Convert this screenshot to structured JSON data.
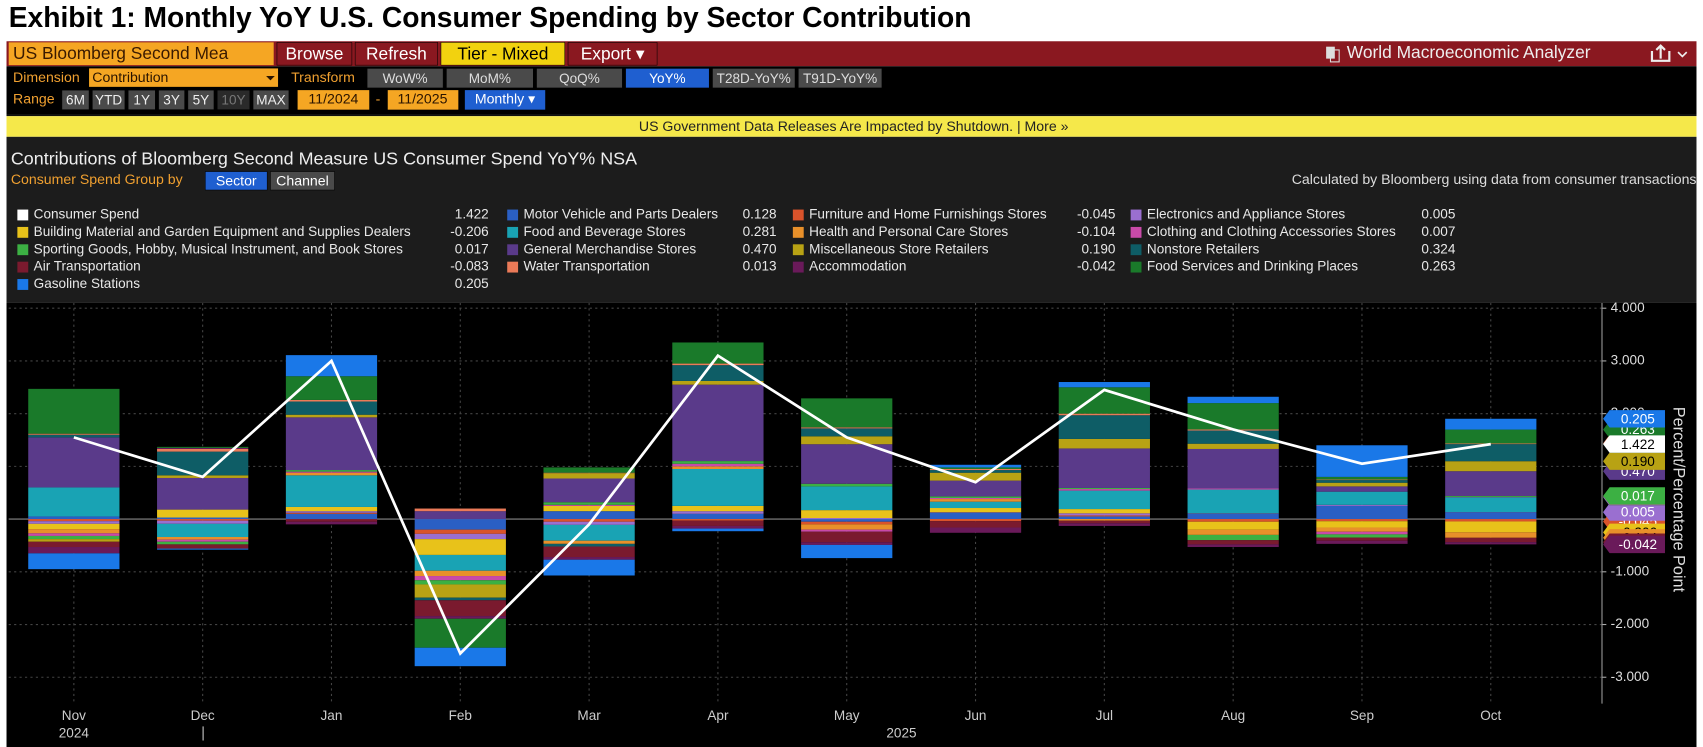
{
  "header": {
    "title": "Exhibit 1: Monthly YoY U.S. Consumer Spending by Sector Contribution"
  },
  "toolbar": {
    "security": "US Bloomberg Second Mea",
    "buttons": [
      "Browse",
      "Refresh",
      "Tier - Mixed",
      "Export ▾"
    ],
    "app_name": "World Macroeconomic Analyzer"
  },
  "controls": {
    "dimension_label": "Dimension",
    "dimension_value": "Contribution",
    "transform_label": "Transform",
    "transforms": [
      {
        "label": "WoW%"
      },
      {
        "label": "MoM%"
      },
      {
        "label": "QoQ%"
      },
      {
        "label": "YoY%",
        "selected": true
      },
      {
        "label": "T28D-YoY%"
      },
      {
        "label": "T91D-YoY%"
      }
    ],
    "range_label": "Range",
    "ranges": [
      {
        "label": "6M"
      },
      {
        "label": "YTD"
      },
      {
        "label": "1Y"
      },
      {
        "label": "3Y"
      },
      {
        "label": "5Y"
      },
      {
        "label": "10Y",
        "disabled": true
      },
      {
        "label": "MAX"
      }
    ],
    "start": "11/2024",
    "separator": "-",
    "end": "11/2025",
    "frequency": "Monthly ▾"
  },
  "banner": "US Government Data Releases Are Impacted by Shutdown. | More »",
  "chart_data": {
    "type": "bar",
    "stacked": true,
    "title": "Contributions of Bloomberg Second Measure US Consumer Spend YoY% NSA",
    "group_by_label": "Consumer Spend  Group by",
    "group_options": [
      {
        "label": "Sector",
        "selected": true
      },
      {
        "label": "Channel"
      }
    ],
    "note": "Calculated by Bloomberg using data from consumer transactions",
    "categories": [
      "Nov",
      "Dec",
      "Jan",
      "Feb",
      "Mar",
      "Apr",
      "May",
      "Jun",
      "Jul",
      "Aug",
      "Sep",
      "Oct"
    ],
    "year_labels": [
      "2024",
      "2025"
    ],
    "y_axis_label": "Percent/Percentage Point",
    "ylim": [
      -3.5,
      4.1
    ],
    "yticks": [
      {
        "value": 4,
        "label": "4.000"
      },
      {
        "value": 3,
        "label": "3.000"
      },
      {
        "value": 2,
        "label": "2.000"
      },
      {
        "value": 1,
        "label": "1.000"
      },
      {
        "value": 0,
        "label": "0.000"
      },
      {
        "value": -1,
        "label": "-1.000"
      },
      {
        "value": -2,
        "label": "-2.000"
      },
      {
        "value": -3,
        "label": "-3.000"
      }
    ],
    "grid": true,
    "series": [
      {
        "name": "Consumer Spend",
        "type": "line",
        "color": "#ffffff",
        "values": [
          1.55,
          0.8,
          3.0,
          -2.55,
          -0.1,
          3.1,
          1.55,
          0.7,
          2.45,
          1.7,
          1.05,
          1.422
        ],
        "value_labels": [
          null,
          null,
          null,
          null,
          null,
          null,
          null,
          null,
          null,
          null,
          null,
          "1.422"
        ]
      },
      {
        "name": "Motor Vehicle and Parts Dealers",
        "color": "#2a5fc4",
        "values": [
          0.05,
          0.03,
          0.1,
          -0.2,
          0.15,
          0.1,
          -0.05,
          0.12,
          0.05,
          0.1,
          0.25,
          0.128
        ],
        "value_labels": [
          null,
          null,
          null,
          null,
          null,
          null,
          null,
          null,
          null,
          null,
          null,
          "0.128"
        ]
      },
      {
        "name": "Furniture and Home Furnishings Stores",
        "color": "#d9532b",
        "values": [
          -0.04,
          -0.03,
          0.02,
          -0.08,
          -0.05,
          -0.03,
          -0.05,
          -0.04,
          0.02,
          -0.05,
          -0.04,
          -0.045
        ],
        "value_labels": [
          null,
          null,
          null,
          null,
          null,
          null,
          null,
          null,
          null,
          null,
          null,
          "-0.045"
        ]
      },
      {
        "name": "Electronics and Appliance Stores",
        "color": "#9a6fd0",
        "values": [
          -0.05,
          -0.06,
          0.03,
          -0.1,
          -0.06,
          0.05,
          0.02,
          0.01,
          0.04,
          0.01,
          0.02,
          0.005
        ],
        "value_labels": [
          null,
          null,
          null,
          null,
          null,
          null,
          null,
          null,
          null,
          null,
          null,
          "0.005"
        ]
      },
      {
        "name": "Building Material and Garden Equipment and Supplies Dealers",
        "color": "#e8c21a",
        "values": [
          -0.1,
          0.15,
          0.08,
          -0.3,
          0.1,
          0.1,
          0.15,
          0.08,
          0.08,
          -0.15,
          -0.12,
          -0.206
        ],
        "value_labels": [
          null,
          null,
          null,
          null,
          null,
          null,
          null,
          null,
          null,
          null,
          null,
          "-0.206"
        ]
      },
      {
        "name": "Food and Beverage Stores",
        "color": "#19a3b4",
        "values": [
          0.55,
          -0.25,
          0.6,
          -0.3,
          -0.3,
          0.7,
          0.45,
          0.12,
          0.35,
          0.45,
          0.25,
          0.281
        ],
        "value_labels": [
          null,
          null,
          null,
          null,
          null,
          null,
          null,
          null,
          null,
          null,
          null,
          "0.281"
        ]
      },
      {
        "name": "Health and Personal Care Stores",
        "color": "#e8902a",
        "values": [
          -0.08,
          -0.05,
          0.05,
          -0.1,
          -0.06,
          0.05,
          -0.1,
          0.05,
          -0.03,
          -0.1,
          -0.08,
          -0.104
        ],
        "value_labels": [
          null,
          null,
          null,
          null,
          null,
          null,
          null,
          null,
          null,
          null,
          null,
          "-0.104"
        ]
      },
      {
        "name": "Clothing and Clothing Accessories Stores",
        "color": "#c84aa8",
        "values": [
          -0.05,
          -0.04,
          0.02,
          -0.08,
          0.02,
          0.05,
          -0.04,
          0.02,
          0.03,
          0.02,
          -0.05,
          0.007
        ],
        "value_labels": [
          null,
          null,
          null,
          null,
          null,
          null,
          null,
          null,
          null,
          null,
          null,
          "0.007"
        ]
      },
      {
        "name": "Sporting Goods, Hobby, Musical Instrument, and Book Stores",
        "color": "#3cb043",
        "values": [
          -0.06,
          -0.05,
          0.03,
          -0.08,
          0.05,
          0.05,
          0.05,
          0.03,
          0.02,
          -0.1,
          -0.06,
          0.017
        ],
        "value_labels": [
          null,
          null,
          null,
          null,
          null,
          null,
          null,
          null,
          null,
          null,
          null,
          "0.017"
        ]
      },
      {
        "name": "General Merchandise Stores",
        "color": "#5a3a8a",
        "values": [
          0.95,
          0.6,
          1.0,
          0.15,
          0.45,
          1.45,
          0.75,
          0.3,
          0.75,
          0.75,
          0.1,
          0.47
        ],
        "value_labels": [
          null,
          null,
          null,
          null,
          null,
          null,
          null,
          null,
          null,
          null,
          null,
          "0.470"
        ]
      },
      {
        "name": "Miscellaneous Store Retailers",
        "color": "#b8a214",
        "values": [
          -0.05,
          0.05,
          0.05,
          -0.25,
          0.1,
          0.07,
          0.15,
          0.15,
          0.18,
          0.1,
          0.07,
          0.19
        ],
        "value_labels": [
          null,
          null,
          null,
          null,
          null,
          null,
          null,
          null,
          null,
          null,
          null,
          "0.190"
        ]
      },
      {
        "name": "Nonstore Retailers",
        "color": "#0e5d66",
        "values": [
          0.05,
          0.45,
          0.25,
          -0.05,
          -0.05,
          0.3,
          0.15,
          0.05,
          0.45,
          0.25,
          0.05,
          0.324
        ],
        "value_labels": [
          null,
          null,
          null,
          null,
          null,
          null,
          null,
          null,
          null,
          null,
          null,
          "0.324"
        ]
      },
      {
        "name": "Air Transportation",
        "color": "#7a1a2e",
        "values": [
          -0.1,
          -0.08,
          -0.05,
          -0.3,
          -0.2,
          -0.1,
          -0.2,
          -0.12,
          -0.05,
          -0.08,
          -0.06,
          -0.083
        ],
        "value_labels": [
          null,
          null,
          null,
          null,
          null,
          null,
          null,
          null,
          null,
          null,
          null,
          "-0.083"
        ]
      },
      {
        "name": "Water Transportation",
        "color": "#ea7a58",
        "values": [
          0.02,
          0.05,
          0.03,
          0.05,
          0.01,
          0.03,
          0.02,
          0.02,
          0.03,
          0.02,
          0.01,
          0.013
        ],
        "value_labels": [
          null,
          null,
          null,
          null,
          null,
          null,
          null,
          null,
          null,
          null,
          null,
          "0.013"
        ]
      },
      {
        "name": "Accommodation",
        "color": "#6a1a5a",
        "values": [
          -0.12,
          0.02,
          -0.05,
          -0.05,
          -0.05,
          -0.05,
          -0.05,
          -0.1,
          -0.05,
          -0.05,
          -0.06,
          -0.042
        ],
        "value_labels": [
          null,
          null,
          null,
          null,
          null,
          null,
          null,
          null,
          null,
          null,
          null,
          "-0.042"
        ]
      },
      {
        "name": "Food Services and Drinking Places",
        "color": "#1a7a2a",
        "values": [
          0.85,
          0.02,
          0.45,
          -0.55,
          0.1,
          0.4,
          0.55,
          0.03,
          0.5,
          0.5,
          0.05,
          0.263
        ],
        "value_labels": [
          null,
          null,
          null,
          null,
          null,
          null,
          null,
          null,
          null,
          null,
          null,
          "0.263"
        ]
      },
      {
        "name": "Gasoline Stations",
        "color": "#1a78e8",
        "values": [
          -0.3,
          -0.02,
          0.4,
          -0.35,
          -0.3,
          -0.05,
          -0.25,
          0.05,
          0.1,
          0.12,
          0.6,
          0.205
        ],
        "value_labels": [
          null,
          null,
          null,
          null,
          null,
          null,
          null,
          null,
          null,
          null,
          null,
          "0.205"
        ]
      }
    ]
  }
}
